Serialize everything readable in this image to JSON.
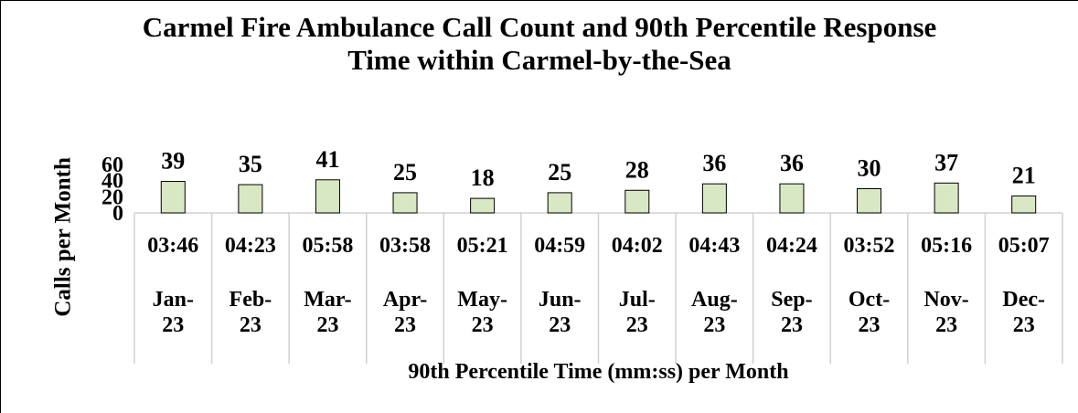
{
  "chart_data": {
    "type": "bar",
    "title": "Carmel Fire Ambulance Call Count and 90th Percentile Response Time within Carmel-by-the-Sea",
    "y_label": "Calls per Month",
    "x_label": "90th Percentile Time (mm:ss) per Month",
    "categories": [
      "Jan-23",
      "Feb-23",
      "Mar-23",
      "Apr-23",
      "May-23",
      "Jun-23",
      "Jul-23",
      "Aug-23",
      "Sep-23",
      "Oct-23",
      "Nov-23",
      "Dec-23"
    ],
    "values": [
      39,
      35,
      41,
      25,
      18,
      25,
      28,
      36,
      36,
      30,
      37,
      21
    ],
    "response_times": [
      "03:46",
      "04:23",
      "05:58",
      "03:58",
      "05:21",
      "04:59",
      "04:02",
      "04:43",
      "04:24",
      "03:52",
      "05:16",
      "05:07"
    ],
    "color": "#d9e8c4",
    "ylim": [
      0,
      60
    ],
    "yticks": [
      0,
      20,
      40,
      60
    ],
    "grid": false
  }
}
